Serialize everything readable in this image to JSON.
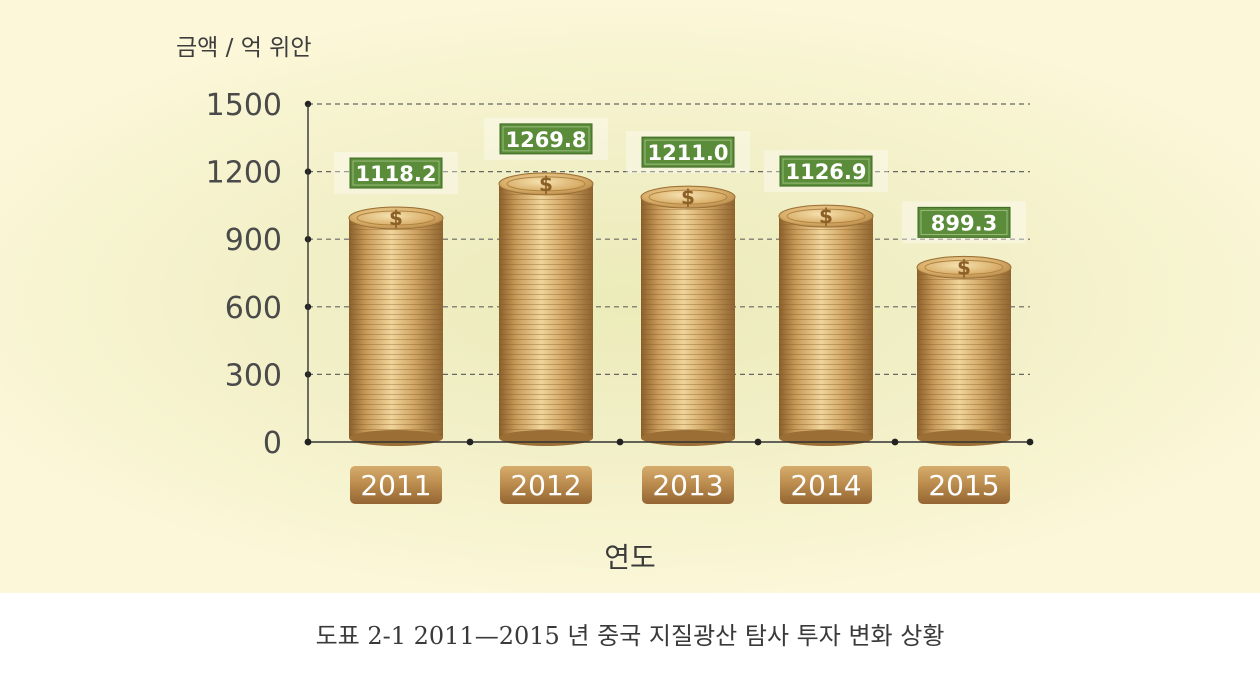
{
  "chart_data": {
    "type": "bar",
    "ylabel": "금액 / 억 위안",
    "xlabel": "연도",
    "categories": [
      "2011",
      "2012",
      "2013",
      "2014",
      "2015"
    ],
    "values": [
      1118.2,
      1269.8,
      1211.0,
      1126.9,
      899.3
    ],
    "value_labels": [
      "1118.2",
      "1269.8",
      "1211.0",
      "1126.9",
      "899.3"
    ],
    "yticks": [
      "0",
      "300",
      "600",
      "900",
      "1200",
      "1500"
    ],
    "ytick_values": [
      0,
      300,
      600,
      900,
      1200,
      1500
    ],
    "ylim": [
      0,
      1500
    ],
    "grid": true,
    "colors": {
      "coin": "#d2a867",
      "coin_dark": "#9a6e34",
      "label_green": "#5b8c3a",
      "year_tag": "#b88a4e",
      "grid": "#666666"
    }
  },
  "caption": "도표 2-1 2011—2015 년 중국 지질광산 탐사 투자 변화 상황"
}
